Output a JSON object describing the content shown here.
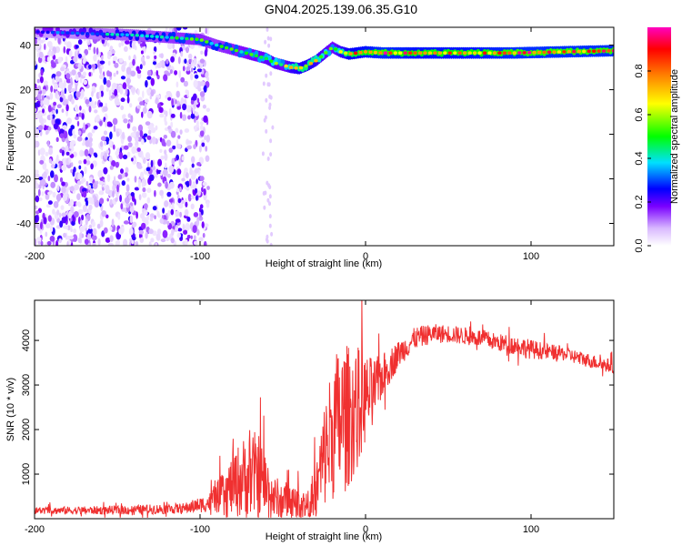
{
  "title": "GN04.2025.139.06.35.G10",
  "chart_data": [
    {
      "type": "heatmap",
      "name": "spectrogram",
      "xlabel": "Height of straight line (km)",
      "ylabel": "Frequency (Hz)",
      "xlim": [
        -200,
        150
      ],
      "ylim": [
        -50,
        48
      ],
      "xticks": [
        -200,
        -100,
        0,
        100
      ],
      "xtick_labels": [
        "-200",
        "-100",
        "0",
        "100"
      ],
      "yticks": [
        -40,
        -20,
        0,
        20,
        40
      ],
      "ytick_labels": [
        "-40",
        "-20",
        "0",
        "20",
        "40"
      ],
      "colorbar": {
        "label": "Normalized spectral amplitude",
        "range": [
          0,
          1
        ],
        "ticks": [
          0,
          0.2,
          0.4,
          0.6,
          0.8
        ],
        "tick_labels": [
          "0.0",
          "0.2",
          "0.4",
          "0.6",
          "0.8"
        ],
        "colors": [
          "#ffffff",
          "#d8b8ff",
          "#7a00ff",
          "#0000ff",
          "#00e0ff",
          "#00ff00",
          "#ffff00",
          "#ff8000",
          "#ff0000",
          "#ff00c0"
        ]
      },
      "ridge": {
        "x": [
          -200,
          -180,
          -160,
          -140,
          -120,
          -100,
          -90,
          -80,
          -70,
          -60,
          -55,
          -50,
          -45,
          -40,
          -35,
          -30,
          -25,
          -20,
          -15,
          -10,
          0,
          10,
          30,
          60,
          90,
          120,
          150
        ],
        "freq": [
          46,
          45.5,
          45,
          44.5,
          43.5,
          42.5,
          40,
          38,
          36,
          34,
          32,
          31,
          30,
          29.5,
          31,
          33,
          36,
          39,
          37,
          36,
          37,
          36.5,
          36.5,
          36.5,
          36.5,
          37,
          37.5
        ],
        "amplitude": [
          0.3,
          0.35,
          0.4,
          0.45,
          0.5,
          0.55,
          0.5,
          0.55,
          0.6,
          0.65,
          0.7,
          0.6,
          0.75,
          0.8,
          0.8,
          0.75,
          0.7,
          0.6,
          0.75,
          0.85,
          0.9,
          0.95,
          0.9,
          0.9,
          0.95,
          0.95,
          0.95
        ]
      },
      "noise_x_range": [
        -200,
        -95
      ]
    },
    {
      "type": "line",
      "name": "snr",
      "xlabel": "Height of straight line (km)",
      "ylabel": "SNR (10 * v/v)",
      "xlim": [
        -200,
        150
      ],
      "ylim": [
        0,
        4900
      ],
      "xticks": [
        -200,
        -100,
        0,
        100
      ],
      "xtick_labels": [
        "-200",
        "-100",
        "0",
        "100"
      ],
      "yticks": [
        1000,
        2000,
        3000,
        4000
      ],
      "ytick_labels": [
        "1000",
        "2000",
        "3000",
        "4000"
      ],
      "color": "#f03030",
      "envelope": {
        "x": [
          -200,
          -150,
          -110,
          -95,
          -85,
          -75,
          -65,
          -55,
          -45,
          -35,
          -30,
          -25,
          -20,
          -15,
          -10,
          -5,
          0,
          5,
          10,
          20,
          30,
          40,
          50,
          60,
          70,
          80,
          90,
          100,
          110,
          120,
          130,
          140,
          150
        ],
        "center": [
          180,
          190,
          230,
          350,
          600,
          900,
          1000,
          450,
          400,
          300,
          600,
          1400,
          2000,
          2200,
          2300,
          2500,
          2700,
          2900,
          3200,
          3700,
          4050,
          4150,
          4150,
          4100,
          4050,
          3950,
          3900,
          3800,
          3750,
          3700,
          3600,
          3500,
          3400
        ],
        "spread": [
          80,
          100,
          120,
          200,
          500,
          900,
          1000,
          500,
          400,
          300,
          700,
          1200,
          1600,
          1800,
          1600,
          1400,
          1000,
          700,
          500,
          300,
          250,
          220,
          200,
          200,
          200,
          200,
          220,
          220,
          180,
          160,
          160,
          160,
          160
        ]
      }
    }
  ]
}
